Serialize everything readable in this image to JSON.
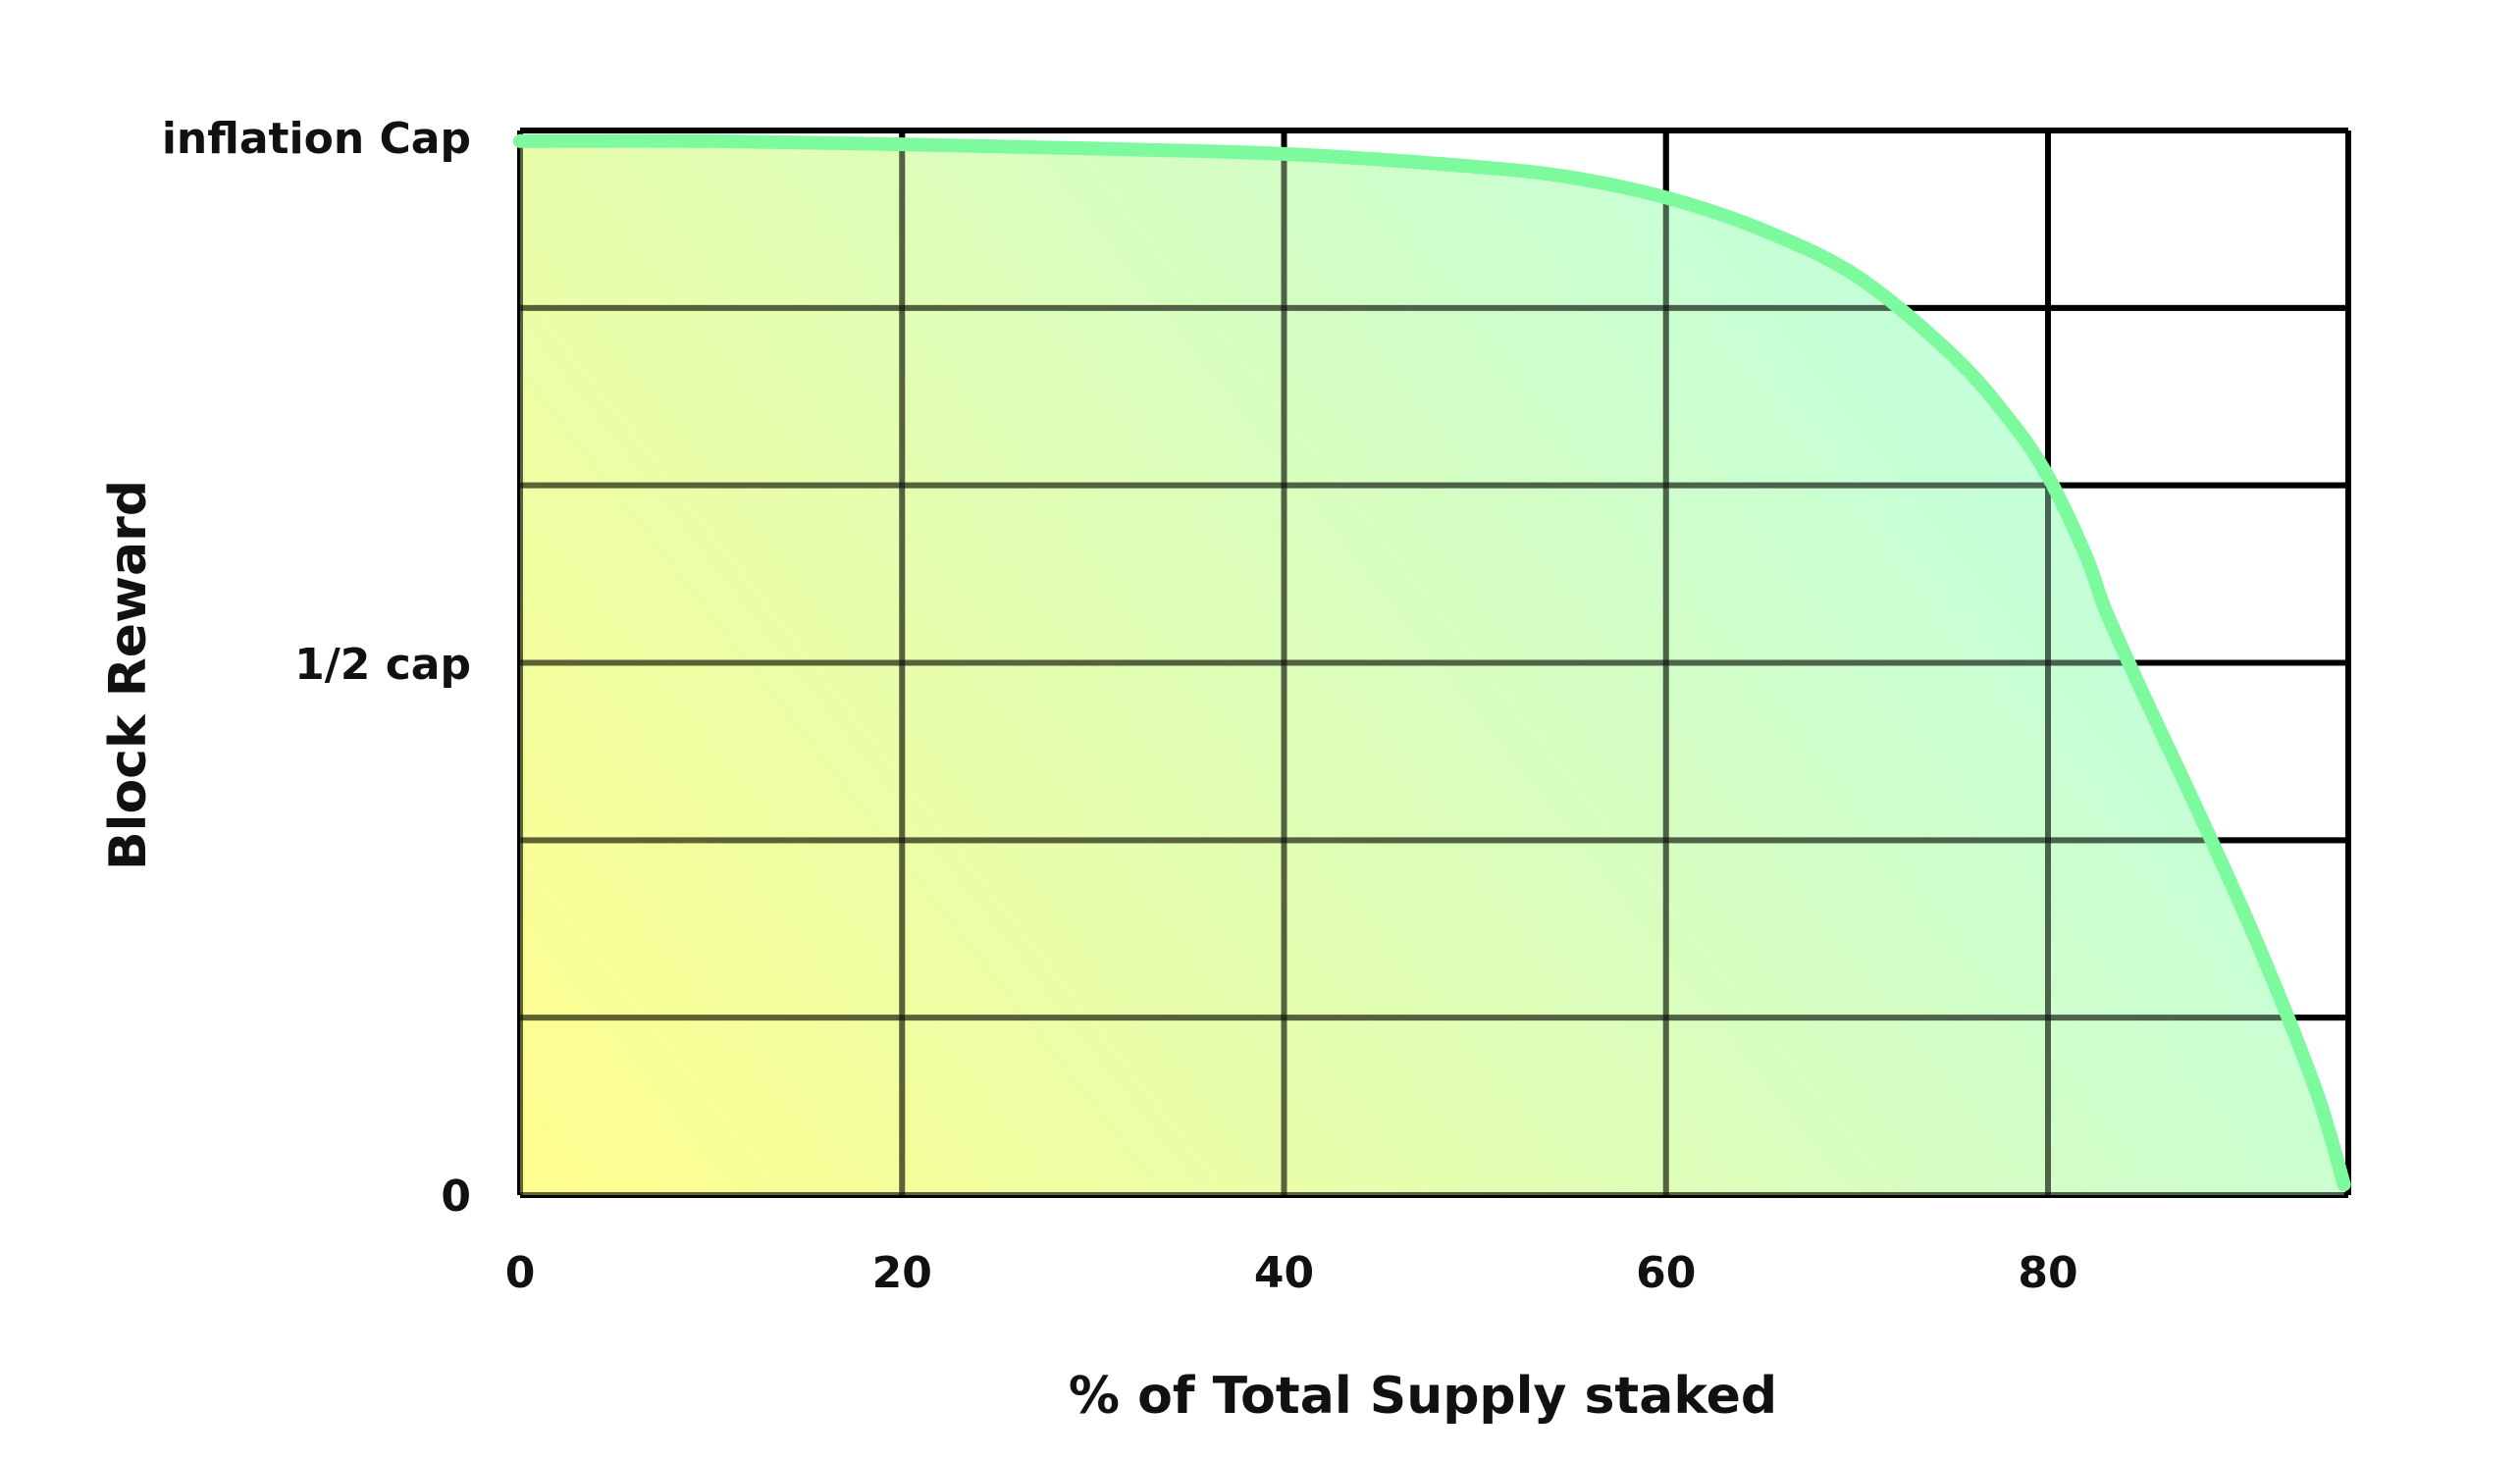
{
  "chart_data": {
    "type": "area",
    "xlabel": "% of Total Supply staked",
    "ylabel": "Block Reward",
    "xlim": [
      0,
      96
    ],
    "ylim": [
      0,
      1
    ],
    "x_ticks": [
      0,
      20,
      40,
      60,
      80
    ],
    "y_tick_labels": [
      {
        "value": 0,
        "label": "0"
      },
      {
        "value": 0.5,
        "label": "1/2 cap"
      },
      {
        "value": 1,
        "label": "inflation Cap"
      }
    ],
    "grid": true,
    "legend": "none",
    "series": [
      {
        "x": [
          0,
          10,
          20,
          30,
          40,
          50,
          55,
          60,
          65,
          70,
          75,
          78,
          80,
          82,
          83,
          85,
          88,
          91,
          94,
          95.5
        ],
        "values": [
          0.99,
          0.99,
          0.987,
          0.983,
          0.978,
          0.966,
          0.956,
          0.937,
          0.907,
          0.863,
          0.789,
          0.728,
          0.675,
          0.6,
          0.55,
          0.47,
          0.355,
          0.235,
          0.1,
          0.01
        ]
      }
    ],
    "colors": {
      "line": "#7df99e",
      "fill_low": "#fffd7a",
      "fill_high": "#b6ffd6",
      "grid": "#000000"
    }
  }
}
